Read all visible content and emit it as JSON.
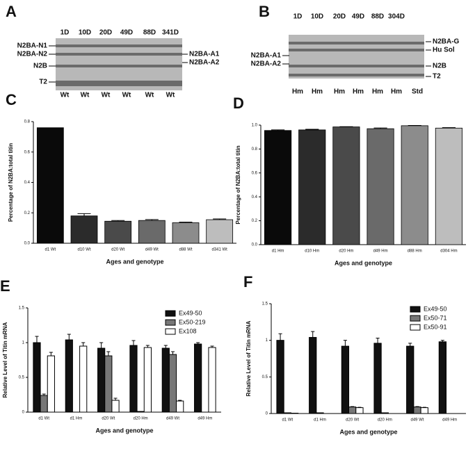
{
  "gels": [
    {
      "letter": "A",
      "lanes": [
        "1D",
        "10D",
        "20D",
        "49D",
        "88D",
        "341D"
      ],
      "genotypes": [
        "Wt",
        "Wt",
        "Wt",
        "Wt",
        "Wt",
        "Wt"
      ],
      "left_labels": [
        "N2BA-N1",
        "N2BA-N2",
        "N2B",
        "T2"
      ],
      "right_labels": [
        "N2BA-A1",
        "N2BA-A2"
      ]
    },
    {
      "letter": "B",
      "lanes": [
        "1D",
        "10D",
        "20D",
        "49D",
        "88D",
        "304D"
      ],
      "genotypes": [
        "Hm",
        "Hm",
        "Hm",
        "Hm",
        "Hm",
        "Hm",
        "Std"
      ],
      "left_labels": [
        "N2BA-A1",
        "N2BA-A2"
      ],
      "right_labels": [
        "N2BA-G",
        "Hu Sol",
        "N2B",
        "T2"
      ]
    }
  ],
  "chart_data": [
    {
      "type": "bar",
      "panel": "C",
      "y_label": "Percentage of N2BA:total titin",
      "x_label": "Ages and genotype",
      "categories": [
        "d1 Wt",
        "d10 Wt",
        "d20 Wt",
        "d49 Wt",
        "d88 Wt",
        "d341 Wt"
      ],
      "values": [
        0.76,
        0.18,
        0.145,
        0.15,
        0.135,
        0.155
      ],
      "errors": [
        0,
        0.015,
        0.005,
        0.006,
        0.004,
        0.005
      ],
      "colors": [
        "#0a0a0a",
        "#2b2b2b",
        "#4a4a4a",
        "#6a6a6a",
        "#8c8c8c",
        "#bdbdbd"
      ],
      "ylim": [
        0,
        0.8
      ],
      "yticks": [
        {
          "value": 0,
          "label": "0.0"
        },
        0.2,
        0.4,
        0.6,
        0.8
      ]
    },
    {
      "type": "bar",
      "panel": "D",
      "y_label": "Percentage of N2BA:total titin",
      "x_label": "Ages and genotype",
      "categories": [
        "d1 Hm",
        "d10 Hm",
        "d20 Hm",
        "d49 Hm",
        "d88 Hm",
        "d304 Hm"
      ],
      "values": [
        0.955,
        0.96,
        0.985,
        0.97,
        0.995,
        0.975
      ],
      "errors": [
        0.005,
        0.005,
        0.002,
        0.006,
        0.002,
        0.004
      ],
      "colors": [
        "#0a0a0a",
        "#2b2b2b",
        "#4a4a4a",
        "#6a6a6a",
        "#8c8c8c",
        "#bdbdbd"
      ],
      "ylim": [
        0,
        1.0
      ],
      "yticks": [
        {
          "value": 0,
          "label": "0.0"
        },
        0.2,
        0.4,
        0.6,
        0.8,
        {
          "value": 1,
          "label": "1.0"
        }
      ]
    },
    {
      "type": "bar",
      "panel": "E",
      "y_label": "Relative Level of Titin mRNA",
      "x_label": "Ages and genotype",
      "categories": [
        "d1 Wt",
        "d1 Hm",
        "d20 Wt",
        "d20 Hm",
        "d49 Wt",
        "d49 Hm"
      ],
      "series": [
        {
          "name": "Ex49-50",
          "color": "#111111",
          "values": [
            1.0,
            1.04,
            0.92,
            0.96,
            0.92,
            0.98
          ],
          "errors": [
            0.09,
            0.08,
            0.08,
            0.07,
            0.04,
            0.02
          ]
        },
        {
          "name": "Ex50-219",
          "color": "#777777",
          "values": [
            0.24,
            0,
            0.81,
            0.01,
            0.83,
            0
          ],
          "errors": [
            0.02,
            0,
            0.06,
            0,
            0.04,
            0
          ]
        },
        {
          "name": "Ex108",
          "color": "#ffffff",
          "values": [
            0.81,
            0.95,
            0.17,
            0.93,
            0.16,
            0.93
          ],
          "errors": [
            0.05,
            0.05,
            0.03,
            0.03,
            0.01,
            0.02
          ]
        }
      ],
      "legend": "top-right",
      "ylim": [
        0,
        1.5
      ],
      "yticks": [
        0,
        0.5,
        1,
        1.5
      ]
    },
    {
      "type": "bar",
      "panel": "F",
      "y_label": "Relative Level of Titin mRNA",
      "x_label": "Ages and genotype",
      "categories": [
        "d1 Wt",
        "d1 Hm",
        "d20 Wt",
        "d20 Hm",
        "d49 Wt",
        "d49 Hm"
      ],
      "series": [
        {
          "name": "Ex49-50",
          "color": "#111111",
          "values": [
            1.0,
            1.04,
            0.92,
            0.96,
            0.92,
            0.98
          ],
          "errors": [
            0.09,
            0.08,
            0.08,
            0.07,
            0.04,
            0.02
          ]
        },
        {
          "name": "Ex50-71",
          "color": "#777777",
          "values": [
            0.01,
            0.01,
            0.09,
            0.01,
            0.09,
            0
          ],
          "errors": [
            0,
            0,
            0.005,
            0,
            0.005,
            0
          ]
        },
        {
          "name": "Ex50-91",
          "color": "#ffffff",
          "values": [
            0.005,
            0,
            0.08,
            0,
            0.08,
            0
          ],
          "errors": [
            0,
            0,
            0.005,
            0,
            0.005,
            0
          ]
        }
      ],
      "legend": "top-right",
      "ylim": [
        0,
        1.5
      ],
      "yticks": [
        0,
        0.5,
        1,
        1.5
      ]
    }
  ]
}
